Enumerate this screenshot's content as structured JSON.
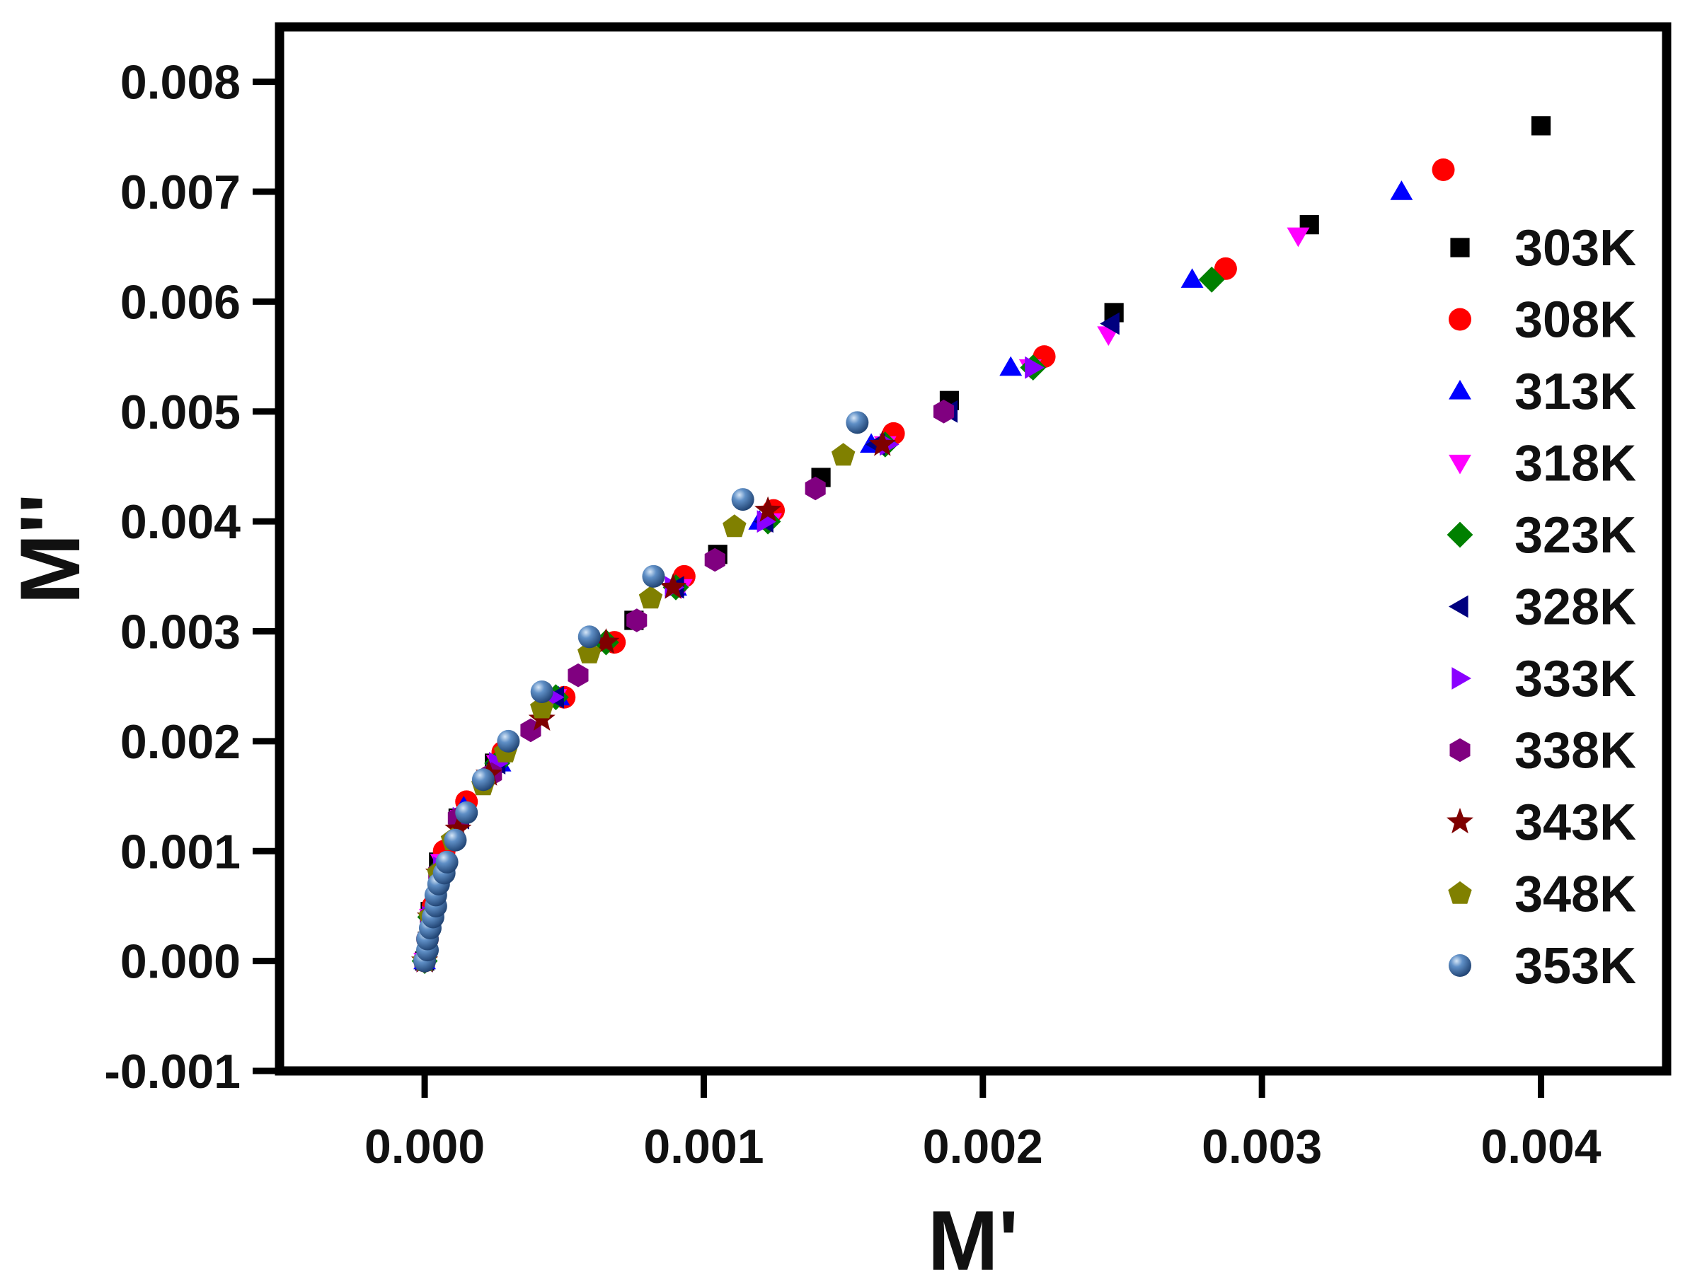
{
  "chart_data": {
    "type": "scatter",
    "title": "",
    "xlabel": "M'",
    "ylabel": "M''",
    "xlim": [
      -0.00052,
      0.00445
    ],
    "ylim": [
      -0.001,
      0.0085
    ],
    "xticks": [
      0.0,
      0.001,
      0.002,
      0.003,
      0.004
    ],
    "yticks": [
      -0.001,
      0.0,
      0.001,
      0.002,
      0.003,
      0.004,
      0.005,
      0.006,
      0.007,
      0.008
    ],
    "xtick_labels": [
      "0.000",
      "0.001",
      "0.002",
      "0.003",
      "0.004"
    ],
    "ytick_labels": [
      "-0.001",
      "0.000",
      "0.001",
      "0.002",
      "0.003",
      "0.004",
      "0.005",
      "0.006",
      "0.007",
      "0.008"
    ],
    "grid": false,
    "legend_position": "right",
    "series": [
      {
        "name": "303K",
        "marker": "square",
        "color": "#000000",
        "points": [
          [
            0.0,
            0.0
          ],
          [
            1e-05,
            0.00018
          ],
          [
            2e-05,
            0.00045
          ],
          [
            5e-05,
            0.0009
          ],
          [
            0.00012,
            0.0013
          ],
          [
            0.00025,
            0.0018
          ],
          [
            0.00045,
            0.0024
          ],
          [
            0.00075,
            0.0031
          ],
          [
            0.00105,
            0.0037
          ],
          [
            0.00142,
            0.0044
          ],
          [
            0.00188,
            0.0051
          ],
          [
            0.00247,
            0.0059
          ],
          [
            0.00317,
            0.0067
          ],
          [
            0.004,
            0.0076
          ]
        ]
      },
      {
        "name": "308K",
        "marker": "circle",
        "color": "#ff0000",
        "points": [
          [
            0.0,
            0.0
          ],
          [
            1e-05,
            0.0002
          ],
          [
            3e-05,
            0.0005
          ],
          [
            7e-05,
            0.001
          ],
          [
            0.00015,
            0.00145
          ],
          [
            0.00028,
            0.0019
          ],
          [
            0.0005,
            0.0024
          ],
          [
            0.00068,
            0.0029
          ],
          [
            0.00093,
            0.0035
          ],
          [
            0.00125,
            0.0041
          ],
          [
            0.00168,
            0.0048
          ],
          [
            0.00222,
            0.0055
          ],
          [
            0.00287,
            0.0063
          ],
          [
            0.00365,
            0.0072
          ]
        ]
      },
      {
        "name": "313K",
        "marker": "triangle-up",
        "color": "#0000ff",
        "points": [
          [
            0.0,
            0.0
          ],
          [
            1e-05,
            0.00018
          ],
          [
            3e-05,
            0.0005
          ],
          [
            7e-05,
            0.0009
          ],
          [
            0.00014,
            0.0014
          ],
          [
            0.00027,
            0.0018
          ],
          [
            0.00048,
            0.0024
          ],
          [
            0.0009,
            0.0034
          ],
          [
            0.0012,
            0.004
          ],
          [
            0.0016,
            0.0047
          ],
          [
            0.0021,
            0.0054
          ],
          [
            0.00275,
            0.0062
          ],
          [
            0.0035,
            0.007
          ]
        ]
      },
      {
        "name": "318K",
        "marker": "triangle-down",
        "color": "#ff00ff",
        "points": [
          [
            0.0,
            0.0
          ],
          [
            2e-05,
            0.0004
          ],
          [
            6e-05,
            0.0009
          ],
          [
            0.00013,
            0.0013
          ],
          [
            0.00026,
            0.0018
          ],
          [
            0.00047,
            0.0024
          ],
          [
            0.00092,
            0.0034
          ],
          [
            0.00124,
            0.004
          ],
          [
            0.00165,
            0.0047
          ],
          [
            0.00217,
            0.0054
          ],
          [
            0.00245,
            0.0057
          ],
          [
            0.00313,
            0.0066
          ]
        ]
      },
      {
        "name": "323K",
        "marker": "diamond",
        "color": "#008000",
        "points": [
          [
            0.0,
            0.0
          ],
          [
            2e-05,
            0.0004
          ],
          [
            6e-05,
            0.00085
          ],
          [
            0.00013,
            0.0013
          ],
          [
            0.00026,
            0.0018
          ],
          [
            0.00047,
            0.0024
          ],
          [
            0.00065,
            0.0029
          ],
          [
            0.0009,
            0.0034
          ],
          [
            0.00123,
            0.004
          ],
          [
            0.00165,
            0.0047
          ],
          [
            0.00218,
            0.0054
          ],
          [
            0.00282,
            0.0062
          ]
        ]
      },
      {
        "name": "328K",
        "marker": "triangle-left",
        "color": "#00007f",
        "points": [
          [
            0.0,
            0.0
          ],
          [
            2e-05,
            0.0004
          ],
          [
            6e-05,
            0.00085
          ],
          [
            0.00013,
            0.0013
          ],
          [
            0.00026,
            0.0018
          ],
          [
            0.00047,
            0.0024
          ],
          [
            0.0009,
            0.0034
          ],
          [
            0.00122,
            0.004
          ],
          [
            0.00162,
            0.0047
          ],
          [
            0.00188,
            0.005
          ],
          [
            0.00246,
            0.0058
          ]
        ]
      },
      {
        "name": "333K",
        "marker": "triangle-right",
        "color": "#8a00ff",
        "points": [
          [
            0.0,
            0.0
          ],
          [
            2e-05,
            0.0004
          ],
          [
            6e-05,
            0.00085
          ],
          [
            0.00013,
            0.0013
          ],
          [
            0.00026,
            0.0018
          ],
          [
            0.00046,
            0.0024
          ],
          [
            0.00089,
            0.0034
          ],
          [
            0.00122,
            0.004
          ],
          [
            0.00166,
            0.0047
          ],
          [
            0.00218,
            0.0054
          ]
        ]
      },
      {
        "name": "338K",
        "marker": "hexagon",
        "color": "#800080",
        "points": [
          [
            0.0,
            0.0
          ],
          [
            2e-05,
            0.0004
          ],
          [
            5e-05,
            0.0008
          ],
          [
            0.00012,
            0.0013
          ],
          [
            0.00024,
            0.0017
          ],
          [
            0.00038,
            0.0021
          ],
          [
            0.00055,
            0.0026
          ],
          [
            0.00076,
            0.0031
          ],
          [
            0.00104,
            0.00365
          ],
          [
            0.0014,
            0.0043
          ],
          [
            0.00186,
            0.005
          ]
        ]
      },
      {
        "name": "343K",
        "marker": "star",
        "color": "#7f0000",
        "points": [
          [
            0.0,
            0.0
          ],
          [
            2e-05,
            0.0004
          ],
          [
            5e-05,
            0.0008
          ],
          [
            0.00012,
            0.0012
          ],
          [
            0.00023,
            0.0017
          ],
          [
            0.00042,
            0.0022
          ],
          [
            0.00065,
            0.0029
          ],
          [
            0.00089,
            0.0034
          ],
          [
            0.00123,
            0.0041
          ],
          [
            0.00164,
            0.0047
          ]
        ]
      },
      {
        "name": "348K",
        "marker": "pentagon",
        "color": "#808000",
        "points": [
          [
            0.0,
            0.0
          ],
          [
            2e-05,
            0.0004
          ],
          [
            5e-05,
            0.0008
          ],
          [
            0.0001,
            0.0011
          ],
          [
            0.00021,
            0.0016
          ],
          [
            0.00029,
            0.0019
          ],
          [
            0.00042,
            0.0023
          ],
          [
            0.00059,
            0.0028
          ],
          [
            0.00081,
            0.0033
          ],
          [
            0.00111,
            0.00395
          ],
          [
            0.0015,
            0.0046
          ]
        ]
      },
      {
        "name": "353K",
        "marker": "sphere",
        "color": "#3c6ea8",
        "points": [
          [
            0.0,
            0.0
          ],
          [
            1e-05,
            0.0001
          ],
          [
            1e-05,
            0.0002
          ],
          [
            2e-05,
            0.0003
          ],
          [
            3e-05,
            0.0004
          ],
          [
            4e-05,
            0.0005
          ],
          [
            4e-05,
            0.0006
          ],
          [
            5e-05,
            0.0007
          ],
          [
            7e-05,
            0.0008
          ],
          [
            8e-05,
            0.0009
          ],
          [
            0.00011,
            0.0011
          ],
          [
            0.00015,
            0.00135
          ],
          [
            0.00021,
            0.00165
          ],
          [
            0.0003,
            0.002
          ],
          [
            0.00042,
            0.00245
          ],
          [
            0.00059,
            0.00295
          ],
          [
            0.00082,
            0.0035
          ],
          [
            0.00114,
            0.0042
          ],
          [
            0.00155,
            0.0049
          ]
        ]
      }
    ]
  }
}
